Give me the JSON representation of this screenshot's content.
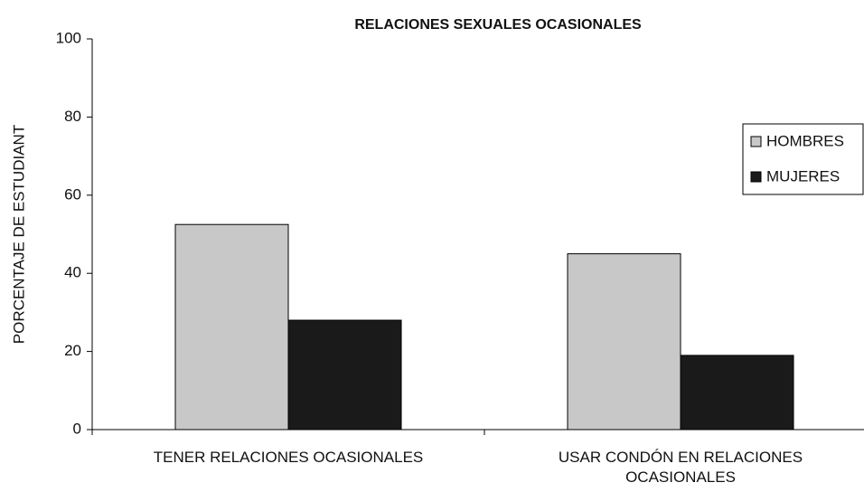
{
  "chart_data": {
    "type": "bar",
    "title": "RELACIONES SEXUALES OCASIONALES",
    "y_label": "PORCENTAJE DE ESTUDIANT",
    "categories": [
      "TENER RELACIONES OCASIONALES",
      "USAR CONDÓN EN RELACIONES OCASIONALES"
    ],
    "series": [
      {
        "name": "HOMBRES",
        "color": "#c8c8c8",
        "values": [
          52.5,
          45
        ]
      },
      {
        "name": "MUJERES",
        "color": "#1a1a1a",
        "values": [
          28,
          19
        ]
      }
    ],
    "ylim": [
      0,
      100
    ],
    "yticks": [
      0,
      20,
      40,
      60,
      80,
      100
    ],
    "grid": false,
    "legend": "right"
  }
}
